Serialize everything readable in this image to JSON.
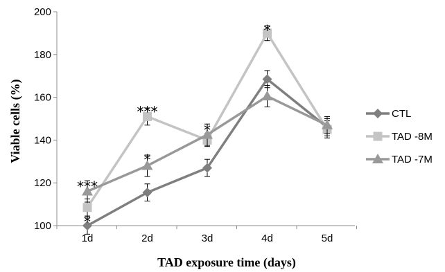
{
  "chart_data": {
    "type": "line",
    "title": "",
    "xlabel": "TAD exposure time (days)",
    "ylabel": "Viable cells (%)",
    "categories": [
      "1d",
      "2d",
      "3d",
      "4d",
      "5d"
    ],
    "ylim": [
      100,
      200
    ],
    "yticks": [
      100,
      120,
      140,
      160,
      180,
      200
    ],
    "grid": false,
    "legend_position": "right",
    "series": [
      {
        "name": "CTL",
        "color": "#7f7f7f",
        "marker": "diamond",
        "values": [
          100,
          115.5,
          127,
          168.5,
          146
        ],
        "errors": [
          4,
          4,
          4,
          4,
          4
        ]
      },
      {
        "name": "TAD -8M",
        "color": "#c4c4c4",
        "marker": "square",
        "values": [
          108.5,
          151,
          140,
          190,
          145
        ],
        "errors": [
          4,
          4,
          3,
          3.5,
          4
        ]
      },
      {
        "name": "TAD -7M",
        "color": "#999999",
        "marker": "triangle",
        "values": [
          116,
          128,
          142.5,
          160.5,
          147
        ],
        "errors": [
          5,
          5,
          5,
          5,
          4
        ]
      }
    ],
    "annotations": [
      {
        "category": "1d",
        "y": 104,
        "text": "*"
      },
      {
        "category": "1d",
        "y": 120.5,
        "text": "***"
      },
      {
        "category": "2d",
        "y": 133,
        "text": "*"
      },
      {
        "category": "2d",
        "y": 155.5,
        "text": "***"
      },
      {
        "category": "3d",
        "y": 147,
        "text": "*"
      },
      {
        "category": "4d",
        "y": 193.5,
        "text": "*"
      }
    ]
  }
}
